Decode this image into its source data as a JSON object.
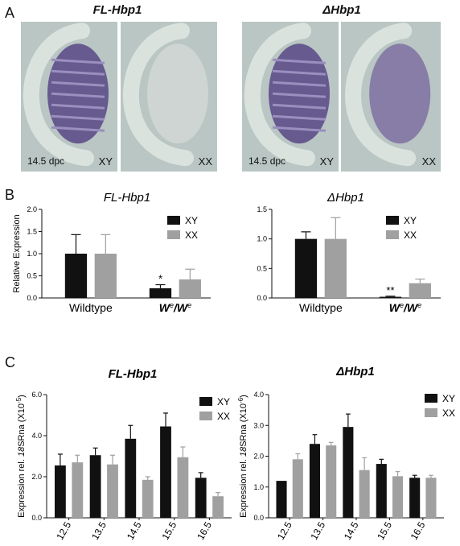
{
  "panel_labels": {
    "A": "A",
    "B": "B",
    "C": "C"
  },
  "panelA": {
    "titles": [
      "FL-Hbp1",
      "ΔHbp1"
    ],
    "images": [
      {
        "stage": "14.5 dpc",
        "sex": "XY",
        "stain": "strong"
      },
      {
        "stage": "",
        "sex": "XX",
        "stain": "none"
      },
      {
        "stage": "14.5 dpc",
        "sex": "XY",
        "stain": "strong"
      },
      {
        "stage": "",
        "sex": "XX",
        "stain": "medium"
      }
    ]
  },
  "colors": {
    "XY": "#111111",
    "XX": "#a0a0a0",
    "photo_bg": "#b9c6c4",
    "stain": "#5e4e8a"
  },
  "chart_data": [
    {
      "type": "bar",
      "title": "FL-Hbp1",
      "ylabel": "Relative Expression",
      "xlabel": "",
      "categories": [
        "Wildtype",
        "We/We"
      ],
      "category_display": [
        {
          "main": "Wildtype",
          "sup": ""
        },
        {
          "main": "W",
          "sup": "e",
          "main2": "/W",
          "sup2": "e"
        }
      ],
      "series": [
        {
          "name": "XY",
          "values": [
            1.0,
            0.22
          ],
          "errors": [
            0.43,
            0.08
          ]
        },
        {
          "name": "XX",
          "values": [
            1.0,
            0.42
          ],
          "errors": [
            0.43,
            0.23
          ]
        }
      ],
      "ylim": [
        0,
        2.0
      ],
      "yticks": [
        "0.0",
        "0.5",
        "1.0",
        "1.5",
        "2.0"
      ],
      "annotations": [
        {
          "category": 1,
          "series": 0,
          "text": "*"
        }
      ],
      "legend": "top-right"
    },
    {
      "type": "bar",
      "title": "ΔHbp1",
      "ylabel": "",
      "xlabel": "",
      "categories": [
        "Wildtype",
        "We/We"
      ],
      "category_display": [
        {
          "main": "Wildtype",
          "sup": ""
        },
        {
          "main": "W",
          "sup": "e",
          "main2": "/W",
          "sup2": "e"
        }
      ],
      "series": [
        {
          "name": "XY",
          "values": [
            1.0,
            0.02
          ],
          "errors": [
            0.12,
            0.01
          ]
        },
        {
          "name": "XX",
          "values": [
            1.0,
            0.25
          ],
          "errors": [
            0.36,
            0.07
          ]
        }
      ],
      "ylim": [
        0,
        1.5
      ],
      "yticks": [
        "0.0",
        "0.5",
        "1.0",
        "1.5"
      ],
      "annotations": [
        {
          "category": 1,
          "series": 0,
          "text": "**"
        }
      ],
      "legend": "top-right"
    },
    {
      "type": "bar",
      "title": "FL-Hbp1",
      "ylabel": "Expression rel. 18SRna (X10-5)",
      "ylabel_parts": {
        "a": "Expression rel. ",
        "b": "18",
        "c": "SRna (X10",
        "sup": "-5",
        "d": ")"
      },
      "xlabel": "",
      "categories": [
        "12.5",
        "13.5",
        "14.5",
        "15.5",
        "16.5"
      ],
      "series": [
        {
          "name": "XY",
          "values": [
            2.55,
            3.05,
            3.85,
            4.45,
            1.95
          ],
          "errors": [
            0.55,
            0.35,
            0.65,
            0.65,
            0.25
          ]
        },
        {
          "name": "XX",
          "values": [
            2.7,
            2.6,
            1.85,
            2.95,
            1.05
          ],
          "errors": [
            0.35,
            0.45,
            0.15,
            0.5,
            0.18
          ]
        }
      ],
      "ylim": [
        0,
        6.0
      ],
      "yticks": [
        "0.0",
        "2.0",
        "4.0",
        "6.0"
      ],
      "legend": "top-right"
    },
    {
      "type": "bar",
      "title": "ΔHbp1",
      "ylabel": "Expression rel. 18SRna (X10-6)",
      "ylabel_parts": {
        "a": "Expression rel. ",
        "b": "18",
        "c": "SRna (X10",
        "sup": "-6",
        "d": ")"
      },
      "xlabel": "",
      "categories": [
        "12.5",
        "13.5",
        "14.5",
        "15.5",
        "16.5"
      ],
      "series": [
        {
          "name": "XY",
          "values": [
            1.2,
            2.4,
            2.95,
            1.75,
            1.3
          ],
          "errors": [
            0.0,
            0.3,
            0.42,
            0.15,
            0.08
          ]
        },
        {
          "name": "XX",
          "values": [
            1.9,
            2.35,
            1.55,
            1.35,
            1.3
          ],
          "errors": [
            0.18,
            0.1,
            0.4,
            0.15,
            0.08
          ]
        }
      ],
      "ylim": [
        0,
        4.0
      ],
      "yticks": [
        "0.0",
        "1.0",
        "2.0",
        "3.0",
        "4.0"
      ],
      "legend": "top-right"
    }
  ]
}
